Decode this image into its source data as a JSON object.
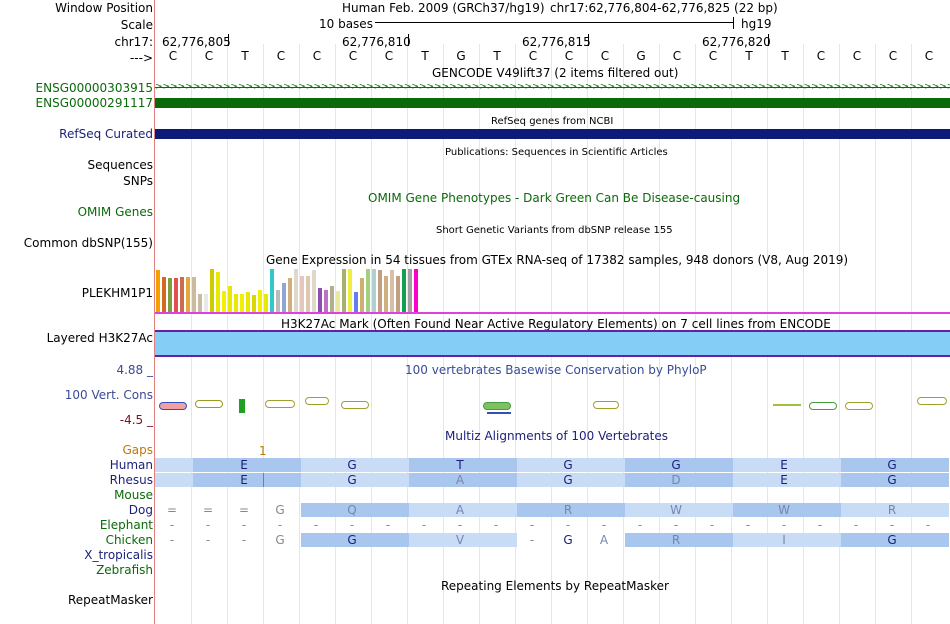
{
  "labels": {
    "window_position": "Window Position",
    "scale": "Scale",
    "chrom": "chr17:",
    "strand": "--->",
    "gene1": "ENSG00000303915",
    "gene2": "ENSG00000291117",
    "refseq": "RefSeq Curated",
    "sequences": "Sequences",
    "snps": "SNPs",
    "omim": "OMIM Genes",
    "dbsnp": "Common dbSNP(155)",
    "plekhm": "PLEKHM1P1",
    "h3k27": "Layered H3K27Ac",
    "cons_max": "4.88 _",
    "cons": "100 Vert. Cons",
    "cons_min": "-4.5 _",
    "gaps": "Gaps",
    "human": "Human",
    "rhesus": "Rhesus",
    "mouse": "Mouse",
    "dog": "Dog",
    "elephant": "Elephant",
    "chicken": "Chicken",
    "xtrop": "X_tropicalis",
    "zebrafish": "Zebrafish",
    "repeatmasker": "RepeatMasker"
  },
  "header": {
    "assembly": "Human Feb. 2009 (GRCh37/hg19)",
    "position": "chr17:62,776,804-62,776,825 (22 bp)",
    "scale_text": "10 bases",
    "scale_db": "hg19",
    "coords": [
      "62,776,805",
      "62,776,810",
      "62,776,815",
      "62,776,820"
    ]
  },
  "bases": [
    "C",
    "C",
    "T",
    "C",
    "C",
    "C",
    "C",
    "T",
    "G",
    "T",
    "C",
    "C",
    "C",
    "G",
    "C",
    "C",
    "T",
    "T",
    "C",
    "C",
    "C",
    "C"
  ],
  "titles": {
    "gencode": "GENCODE V49lift37 (2 items filtered out)",
    "refseq": "RefSeq genes from NCBI",
    "publications": "Publications: Sequences in Scientific Articles",
    "omim": "OMIM Gene Phenotypes - Dark Green Can Be Disease-causing",
    "dbsnp": "Short Genetic Variants from dbSNP release 155",
    "gtex": "Gene Expression in 54 tissues from GTEx RNA-seq of 17382 samples, 948 donors (V8, Aug 2019)",
    "h3k27": "H3K27Ac Mark (Often Found Near Active Regulatory Elements) on 7 cell lines from ENCODE",
    "phylop": "100 vertebrates Basewise Conservation by PhyloP",
    "multiz": "Multiz Alignments of 100 Vertebrates",
    "repeatmasker": "Repeating Elements by RepeatMasker"
  },
  "gaps_marker": "1",
  "alignment": {
    "human": [
      "E",
      "G",
      "T",
      "G",
      "G",
      "E",
      "G"
    ],
    "rhesus": [
      "E",
      "G",
      "A",
      "G",
      "D",
      "E",
      "G"
    ],
    "dog_prefix": [
      "=",
      "=",
      "=",
      "G"
    ],
    "dog": [
      "Q",
      "A",
      "R",
      "W",
      "W",
      "R"
    ],
    "chicken_prefix": [
      "G"
    ],
    "chicken": [
      "G",
      "V",
      "G",
      "A",
      "R",
      "I",
      "G"
    ]
  },
  "colors": {
    "gencode": "#0a6a0a",
    "refseq": "#0c1a78",
    "h3k27_fill": "#84cdf6",
    "h3k27_line": "#6a1ea8",
    "gtex_axis": "#e040e0"
  },
  "gtex_bars": [
    {
      "color": "#f5a000",
      "value": 0.95
    },
    {
      "color": "#d2691e",
      "value": 0.8
    },
    {
      "color": "#7f9c3e",
      "value": 0.78
    },
    {
      "color": "#e05050",
      "value": 0.78
    },
    {
      "color": "#cc6c4e",
      "value": 0.8
    },
    {
      "color": "#e6a63a",
      "value": 0.8
    },
    {
      "color": "#ccbaa0",
      "value": 0.8
    },
    {
      "color": "#ccbaa0",
      "value": 0.4
    },
    {
      "color": "#e8e8e8",
      "value": 0.4
    },
    {
      "color": "#cccc00",
      "value": 0.98
    },
    {
      "color": "#e8e800",
      "value": 0.9
    },
    {
      "color": "#f0f000",
      "value": 0.48
    },
    {
      "color": "#e8e800",
      "value": 0.58
    },
    {
      "color": "#e8e800",
      "value": 0.4
    },
    {
      "color": "#f0f000",
      "value": 0.42
    },
    {
      "color": "#e8e800",
      "value": 0.45
    },
    {
      "color": "#d8d800",
      "value": 0.38
    },
    {
      "color": "#f0f000",
      "value": 0.5
    },
    {
      "color": "#e8e800",
      "value": 0.42
    },
    {
      "color": "#30c8c8",
      "value": 0.98
    },
    {
      "color": "#bbbbbb",
      "value": 0.5
    },
    {
      "color": "#8ea6d0",
      "value": 0.65
    },
    {
      "color": "#d0b080",
      "value": 0.78
    },
    {
      "color": "#e0d8c8",
      "value": 0.98
    },
    {
      "color": "#e4c8c0",
      "value": 0.82
    },
    {
      "color": "#e0c8b0",
      "value": 0.82
    },
    {
      "color": "#e0d8c8",
      "value": 0.95
    },
    {
      "color": "#9050b0",
      "value": 0.55
    },
    {
      "color": "#c070c0",
      "value": 0.5
    },
    {
      "color": "#b0b090",
      "value": 0.6
    },
    {
      "color": "#e8e8a0",
      "value": 0.48
    },
    {
      "color": "#a8b070",
      "value": 0.98
    },
    {
      "color": "#eeee40",
      "value": 0.98
    },
    {
      "color": "#6080f0",
      "value": 0.45
    },
    {
      "color": "#d0b070",
      "value": 0.78
    },
    {
      "color": "#a0d080",
      "value": 0.98
    },
    {
      "color": "#b0d0d0",
      "value": 0.98
    },
    {
      "color": "#c0a080",
      "value": 0.95
    },
    {
      "color": "#d0b080",
      "value": 0.82
    },
    {
      "color": "#d8c0a8",
      "value": 0.95
    },
    {
      "color": "#c0a080",
      "value": 0.82
    },
    {
      "color": "#10a050",
      "value": 0.98
    },
    {
      "color": "#a4a0a0",
      "value": 0.98
    },
    {
      "color": "#ff00cc",
      "value": 0.98
    }
  ]
}
